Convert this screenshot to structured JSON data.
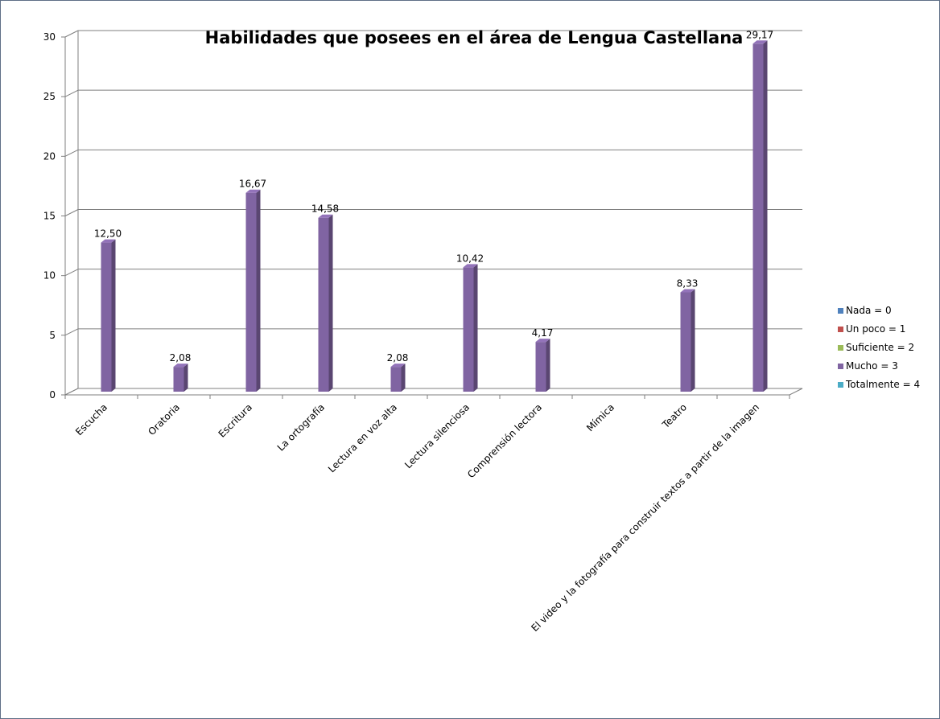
{
  "chart_data": {
    "type": "bar",
    "title": "Habilidades que posees en el área de Lengua Castellana",
    "xlabel": "",
    "ylabel": "",
    "categories": [
      "Escucha",
      "Oratoria",
      "Escritura",
      "La ortografía",
      "Lectura en voz alta",
      "Lectura silenciosa",
      "Comprensión lectora",
      "Mímica",
      "Teatro",
      "El video y la fotografía para construir textos a partir de la imagen"
    ],
    "ylim": [
      0,
      30
    ],
    "yticks": [
      0,
      5,
      10,
      15,
      20,
      25,
      30
    ],
    "grid": true,
    "legend_position": "right",
    "series": [
      {
        "name": "Nada = 0",
        "color": "#4f81bd",
        "values": [
          0,
          0,
          0,
          0,
          0,
          0,
          0,
          0,
          0,
          0
        ]
      },
      {
        "name": "Un poco = 1",
        "color": "#c0504d",
        "values": [
          0,
          0,
          0,
          0,
          0,
          0,
          0,
          0,
          0,
          0
        ]
      },
      {
        "name": "Suficiente = 2",
        "color": "#9bbb59",
        "values": [
          0,
          0,
          0,
          0,
          0,
          0,
          0,
          0,
          0,
          0
        ]
      },
      {
        "name": "Mucho = 3",
        "color": "#8064a2",
        "values": [
          12.5,
          2.08,
          16.67,
          14.58,
          2.08,
          10.42,
          4.17,
          0,
          8.33,
          29.17
        ]
      },
      {
        "name": "Totalmente = 4",
        "color": "#4bacc6",
        "values": [
          0,
          0,
          0,
          0,
          0,
          0,
          0,
          0,
          0,
          0
        ]
      }
    ],
    "data_labels": [
      "12,50",
      "2,08",
      "16,67",
      "14,58",
      "2,08",
      "10,42",
      "4,17",
      "",
      "8,33",
      "29,17"
    ]
  }
}
